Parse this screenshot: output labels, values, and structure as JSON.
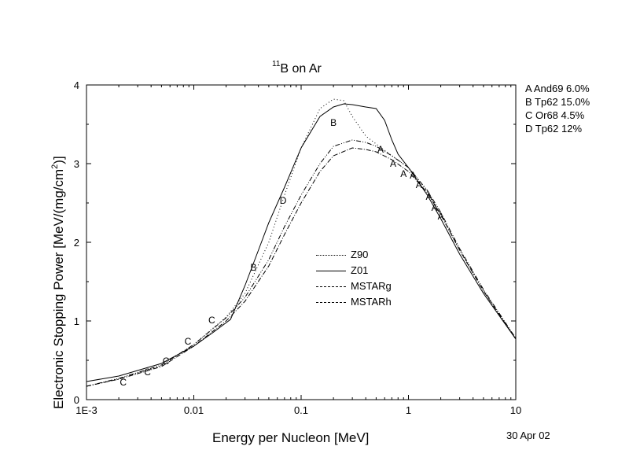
{
  "chart_data": {
    "type": "line",
    "title_isotope": "11",
    "title_rest": "B on Ar",
    "xlabel": "Energy per Nucleon [MeV]",
    "ylabel_main": "Electronic Stopping Power [MeV/(mg/cm",
    "ylabel_sup": "2",
    "ylabel_end": ")]",
    "xscale": "log",
    "xlim": [
      0.001,
      10
    ],
    "ylim": [
      0,
      4
    ],
    "x_ticks": [
      {
        "value": 0.001,
        "label": "1E-3"
      },
      {
        "value": 0.01,
        "label": "0.01"
      },
      {
        "value": 0.1,
        "label": "0.1"
      },
      {
        "value": 1,
        "label": "1"
      },
      {
        "value": 10,
        "label": "10"
      }
    ],
    "y_ticks": [
      {
        "value": 0,
        "label": "0"
      },
      {
        "value": 1,
        "label": "1"
      },
      {
        "value": 2,
        "label": "2"
      },
      {
        "value": 3,
        "label": "3"
      },
      {
        "value": 4,
        "label": "4"
      }
    ],
    "series": [
      {
        "name": "Z90",
        "style": "dotted",
        "points": [
          [
            0.001,
            0.17
          ],
          [
            0.002,
            0.26
          ],
          [
            0.005,
            0.43
          ],
          [
            0.01,
            0.7
          ],
          [
            0.02,
            1.05
          ],
          [
            0.03,
            1.35
          ],
          [
            0.05,
            2.0
          ],
          [
            0.07,
            2.6
          ],
          [
            0.1,
            3.2
          ],
          [
            0.15,
            3.7
          ],
          [
            0.2,
            3.82
          ],
          [
            0.25,
            3.8
          ],
          [
            0.3,
            3.6
          ],
          [
            0.4,
            3.35
          ],
          [
            0.5,
            3.25
          ],
          [
            0.7,
            3.1
          ],
          [
            1,
            2.95
          ],
          [
            1.5,
            2.65
          ],
          [
            2,
            2.35
          ],
          [
            3,
            1.9
          ],
          [
            5,
            1.38
          ],
          [
            10,
            0.77
          ]
        ]
      },
      {
        "name": "Z01",
        "style": "solid",
        "points": [
          [
            0.001,
            0.23
          ],
          [
            0.002,
            0.3
          ],
          [
            0.005,
            0.46
          ],
          [
            0.01,
            0.68
          ],
          [
            0.015,
            0.85
          ],
          [
            0.022,
            1.02
          ],
          [
            0.03,
            1.45
          ],
          [
            0.04,
            1.9
          ],
          [
            0.05,
            2.25
          ],
          [
            0.07,
            2.7
          ],
          [
            0.1,
            3.2
          ],
          [
            0.15,
            3.6
          ],
          [
            0.2,
            3.72
          ],
          [
            0.25,
            3.76
          ],
          [
            0.3,
            3.75
          ],
          [
            0.4,
            3.72
          ],
          [
            0.5,
            3.7
          ],
          [
            0.6,
            3.55
          ],
          [
            0.7,
            3.3
          ],
          [
            0.8,
            3.12
          ],
          [
            1,
            2.95
          ],
          [
            1.5,
            2.6
          ],
          [
            2,
            2.3
          ],
          [
            3,
            1.85
          ],
          [
            5,
            1.35
          ],
          [
            10,
            0.77
          ]
        ]
      },
      {
        "name": "MSTARg",
        "style": "dashdot",
        "points": [
          [
            0.001,
            0.17
          ],
          [
            0.002,
            0.26
          ],
          [
            0.005,
            0.42
          ],
          [
            0.01,
            0.68
          ],
          [
            0.02,
            1.0
          ],
          [
            0.03,
            1.25
          ],
          [
            0.05,
            1.7
          ],
          [
            0.07,
            2.1
          ],
          [
            0.1,
            2.5
          ],
          [
            0.15,
            2.9
          ],
          [
            0.2,
            3.1
          ],
          [
            0.3,
            3.2
          ],
          [
            0.4,
            3.18
          ],
          [
            0.5,
            3.15
          ],
          [
            0.7,
            3.05
          ],
          [
            1,
            2.9
          ],
          [
            1.5,
            2.63
          ],
          [
            2,
            2.35
          ],
          [
            3,
            1.9
          ],
          [
            5,
            1.38
          ],
          [
            10,
            0.77
          ]
        ]
      },
      {
        "name": "MSTARh",
        "style": "dashdotdot",
        "points": [
          [
            0.001,
            0.17
          ],
          [
            0.002,
            0.27
          ],
          [
            0.005,
            0.44
          ],
          [
            0.01,
            0.7
          ],
          [
            0.02,
            1.04
          ],
          [
            0.03,
            1.3
          ],
          [
            0.05,
            1.78
          ],
          [
            0.07,
            2.2
          ],
          [
            0.1,
            2.6
          ],
          [
            0.15,
            3.0
          ],
          [
            0.2,
            3.22
          ],
          [
            0.3,
            3.3
          ],
          [
            0.4,
            3.27
          ],
          [
            0.5,
            3.22
          ],
          [
            0.7,
            3.1
          ],
          [
            1,
            2.95
          ],
          [
            1.5,
            2.66
          ],
          [
            2,
            2.38
          ],
          [
            3,
            1.92
          ],
          [
            5,
            1.4
          ],
          [
            10,
            0.78
          ]
        ]
      }
    ],
    "markers": [
      {
        "letter": "C",
        "x": 0.0022,
        "y": 0.22
      },
      {
        "letter": "C",
        "x": 0.0037,
        "y": 0.35
      },
      {
        "letter": "C",
        "x": 0.0055,
        "y": 0.49
      },
      {
        "letter": "C",
        "x": 0.0088,
        "y": 0.74
      },
      {
        "letter": "C",
        "x": 0.0147,
        "y": 1.01
      },
      {
        "letter": "B",
        "x": 0.036,
        "y": 1.68
      },
      {
        "letter": "D",
        "x": 0.068,
        "y": 2.53
      },
      {
        "letter": "B",
        "x": 0.2,
        "y": 3.52
      },
      {
        "letter": "A",
        "x": 0.55,
        "y": 3.18
      },
      {
        "letter": "A",
        "x": 0.72,
        "y": 3.0
      },
      {
        "letter": "A",
        "x": 0.9,
        "y": 2.87
      },
      {
        "letter": "A",
        "x": 1.1,
        "y": 2.85
      },
      {
        "letter": "A",
        "x": 1.25,
        "y": 2.73
      },
      {
        "letter": "A",
        "x": 1.55,
        "y": 2.58
      },
      {
        "letter": "A",
        "x": 1.75,
        "y": 2.44
      },
      {
        "letter": "A",
        "x": 2.0,
        "y": 2.33
      }
    ],
    "references": [
      "A And69 6.0%",
      "B Tp62  15.0%",
      "C Or68  4.5%",
      "D Tp62  12%"
    ],
    "legend_position": "center",
    "grid": false
  },
  "date_stamp": "30 Apr 02"
}
